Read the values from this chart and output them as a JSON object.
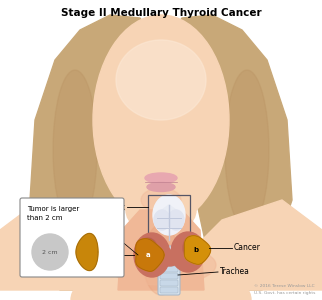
{
  "title": "Stage II Medullary Thyroid Cancer",
  "title_fontsize": 7.5,
  "title_fontweight": "bold",
  "bg_color": "#ffffff",
  "copyright_text1": "© 2016 Terese Winslow LLC",
  "copyright_text2": "U.S. Govt. has certain rights",
  "skin_light": "#f7d4b5",
  "skin_mid": "#f0b897",
  "skin_dark": "#e8a07a",
  "hair_color": "#c8a878",
  "hair_dark": "#b89060",
  "thyroid_color": "#c87060",
  "thyroid_dark": "#a85040",
  "larynx_color": "#e8eef5",
  "larynx_edge": "#c0c8d8",
  "trachea_color": "#d8e5ef",
  "trachea_edge": "#a8b8c8",
  "cancer_a_color": "#c8780a",
  "cancer_b_color": "#d4900a",
  "label_fontsize": 5.5,
  "inset_egg_color": "#c8860a",
  "inset_circle_color": "#c8c8c8"
}
